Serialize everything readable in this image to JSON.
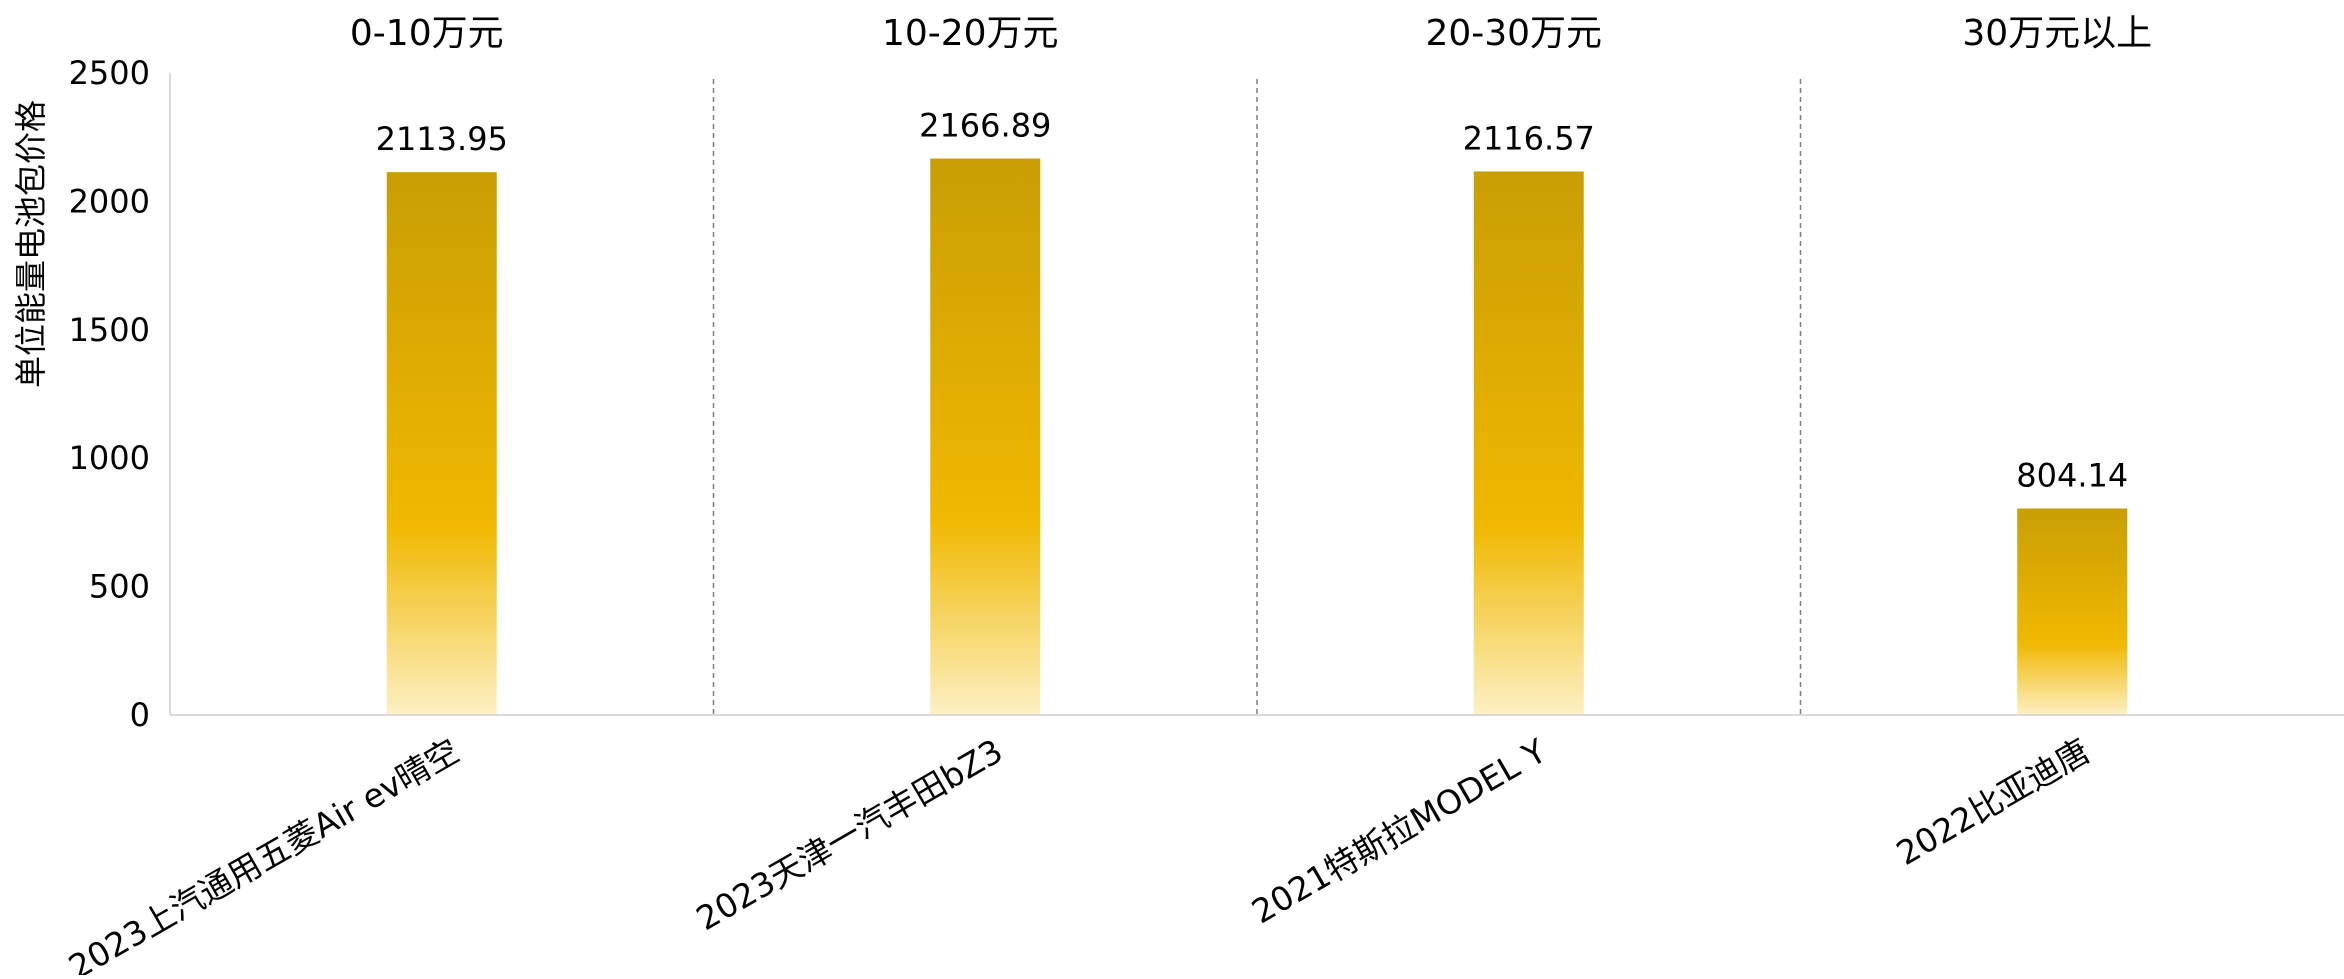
{
  "chart_data": {
    "type": "bar",
    "categories": [
      "2023上汽通用五菱Air ev晴空",
      "2023天津一汽丰田bZ3",
      "2021特斯拉MODEL Y",
      "2022比亚迪唐"
    ],
    "groups": [
      "0-10万元",
      "10-20万元",
      "20-30万元",
      "30万元以上"
    ],
    "values": [
      2113.95,
      2166.89,
      2116.57,
      804.14
    ],
    "data_labels": [
      "2113.95",
      "2166.89",
      "2116.57",
      "804.14"
    ],
    "ylabel": "单位能量电池包价格",
    "ylim": [
      0,
      2500
    ],
    "yticks": [
      0,
      500,
      1000,
      1500,
      2000,
      2500
    ],
    "grid": false,
    "group_separators": "dashed vertical lines",
    "colors": {
      "bar_top": "#C99E04",
      "bar_mid": "#F0B800",
      "bar_bottom": "#FDF0C4",
      "axis": "#D9D9D9",
      "separator": "#7F7F7F"
    }
  }
}
